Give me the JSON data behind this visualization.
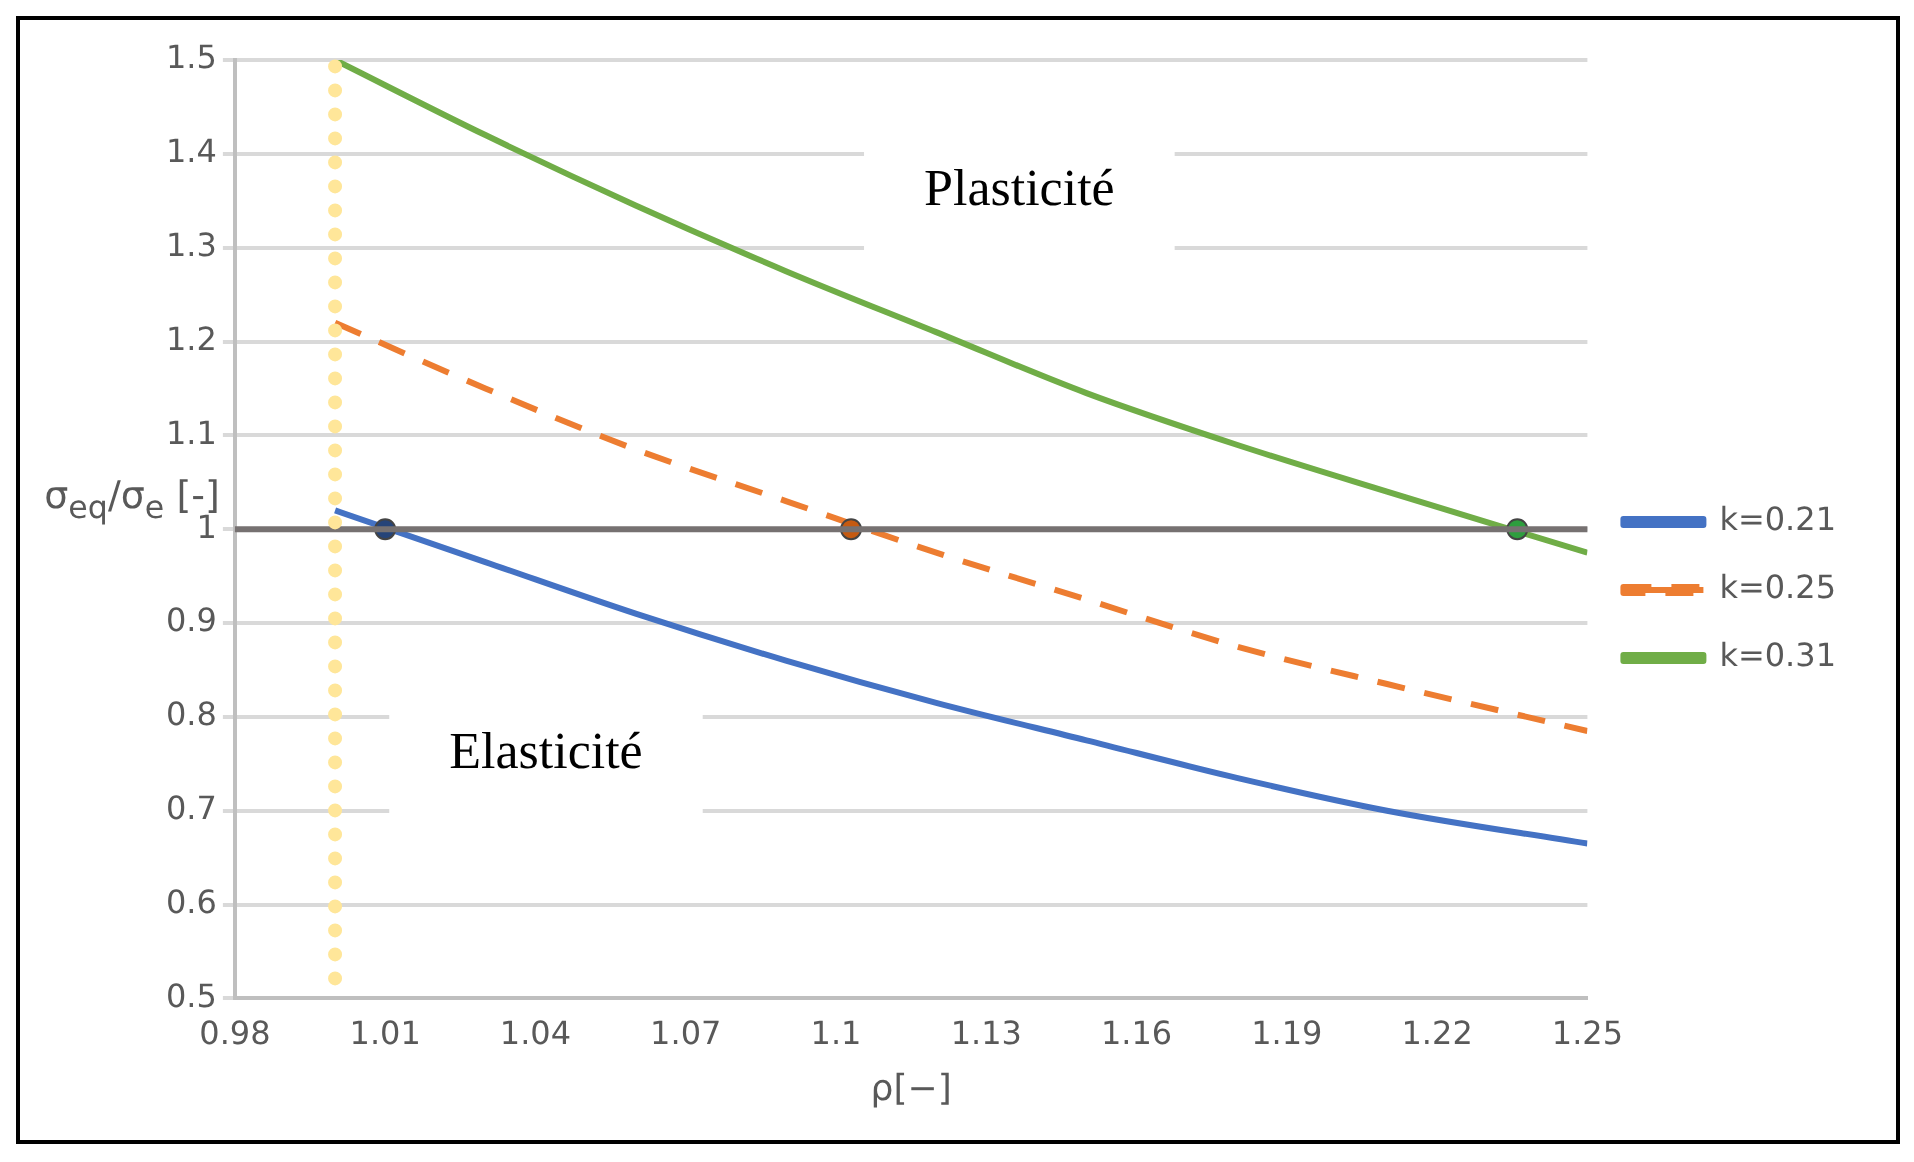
{
  "chart_data": {
    "type": "line",
    "xlabel": "ρ[−]",
    "ylabel": "σ$_{eq}$/σ$_{e}$ [-]",
    "xlim": [
      0.98,
      1.25
    ],
    "xticks": [
      0.98,
      1.01,
      1.04,
      1.07,
      1.1,
      1.13,
      1.16,
      1.19,
      1.22,
      1.25
    ],
    "ylim": [
      0.5,
      1.5
    ],
    "yticks": [
      0.5,
      0.6,
      0.7,
      0.8,
      0.9,
      1,
      1.1,
      1.2,
      1.3,
      1.4,
      1.5
    ],
    "grid": "y",
    "legend": "right",
    "series": [
      {
        "name": "k=0.21",
        "color": "#4472c4",
        "line_style": "solid",
        "x": [
          1.0,
          1.03,
          1.06,
          1.09,
          1.12,
          1.15,
          1.18,
          1.21,
          1.25
        ],
        "values": [
          1.02,
          0.965,
          0.91,
          0.86,
          0.815,
          0.775,
          0.735,
          0.7,
          0.665
        ]
      },
      {
        "name": "k=0.25",
        "color": "#ed7d31",
        "line_style": "dashed",
        "x": [
          1.0,
          1.03,
          1.06,
          1.09,
          1.12,
          1.15,
          1.18,
          1.21,
          1.25
        ],
        "values": [
          1.22,
          1.15,
          1.085,
          1.03,
          0.975,
          0.925,
          0.875,
          0.835,
          0.785
        ]
      },
      {
        "name": "k=0.31",
        "color": "#70ad47",
        "line_style": "solid",
        "x": [
          1.0,
          1.03,
          1.06,
          1.09,
          1.12,
          1.15,
          1.18,
          1.21,
          1.25
        ],
        "values": [
          1.5,
          1.42,
          1.345,
          1.275,
          1.21,
          1.145,
          1.09,
          1.04,
          0.975
        ]
      },
      {
        "type": "scatter",
        "color": "#264478",
        "marker": "circle",
        "x": [
          1.01
        ],
        "values": [
          1.0
        ]
      },
      {
        "type": "scatter",
        "color": "#c55a11",
        "marker": "circle",
        "x": [
          1.103
        ],
        "values": [
          1.0
        ]
      },
      {
        "type": "scatter",
        "color": "#2e9e3e",
        "marker": "circle",
        "x": [
          1.236
        ],
        "values": [
          1.0
        ]
      }
    ],
    "ref_lines": [
      {
        "axis": "y",
        "value": 1,
        "color": "#767171",
        "line_style": "solid"
      },
      {
        "axis": "x",
        "value": 1,
        "color": "#ffe699",
        "line_style": "dotted"
      }
    ],
    "annotations": [
      "Plasticité",
      "Elasticité"
    ]
  }
}
